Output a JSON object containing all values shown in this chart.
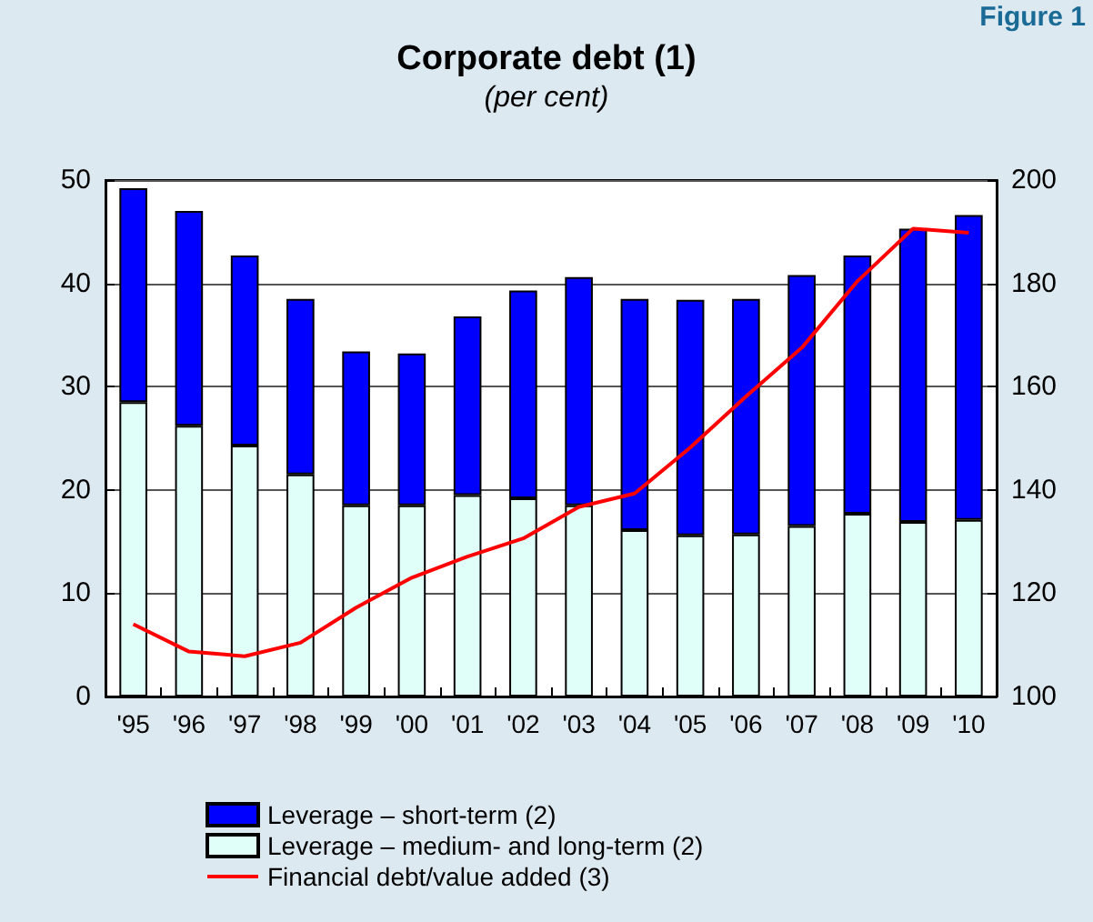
{
  "chart_data": {
    "type": "bar",
    "title": "Corporate debt (1)",
    "subtitle": "(per cent)",
    "annotations": [
      "Figure 1"
    ],
    "categories": [
      "'95",
      "'96",
      "'97",
      "'98",
      "'99",
      "'00",
      "'01",
      "'02",
      "'03",
      "'04",
      "'05",
      "'06",
      "'07",
      "'08",
      "'09",
      "'10"
    ],
    "stacked": true,
    "grid": "y",
    "legend": "bottom",
    "ylim": [
      0,
      50
    ],
    "yticks": [
      0,
      10,
      20,
      30,
      40,
      50
    ],
    "y2lim": [
      100,
      200
    ],
    "y2ticks": [
      100,
      120,
      140,
      160,
      180,
      200
    ],
    "series": [
      {
        "name": "Leverage – medium- and long-term (2)",
        "color": "#e0fff8",
        "values": [
          28.5,
          26.2,
          24.3,
          21.5,
          18.5,
          18.5,
          19.5,
          19.2,
          18.5,
          16.1,
          15.6,
          15.7,
          16.5,
          17.7,
          16.9,
          17.1
        ]
      },
      {
        "name": "Leverage – short-term (2)",
        "color": "#0000ff",
        "values": [
          20.7,
          20.8,
          18.4,
          17.0,
          14.9,
          14.7,
          17.3,
          20.1,
          22.1,
          22.4,
          22.8,
          22.8,
          24.3,
          25.0,
          28.4,
          29.5
        ]
      },
      {
        "name": "Financial debt/value added (3)",
        "type": "line",
        "axis": "y2",
        "color": "#ff0000",
        "values": [
          114.0,
          108.7,
          107.8,
          110.4,
          117.2,
          123.0,
          127.1,
          130.6,
          136.7,
          139.3,
          148.2,
          158.1,
          167.5,
          180.4,
          190.6,
          189.8
        ]
      }
    ]
  }
}
